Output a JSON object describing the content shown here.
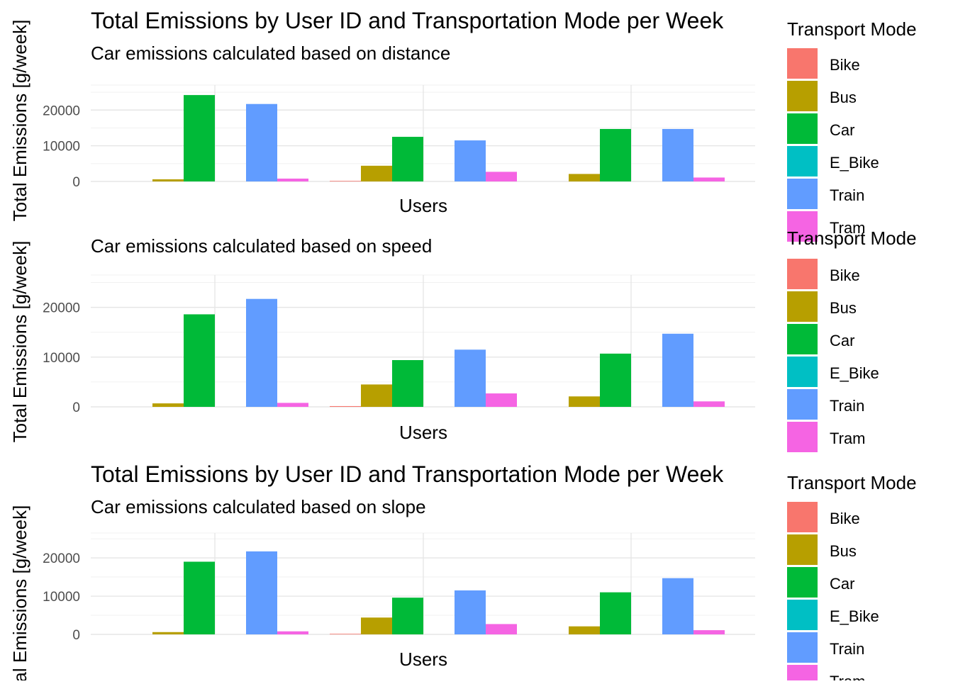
{
  "legend": {
    "title": "Transport Mode",
    "items": [
      {
        "label": "Bike",
        "color": "#F8766D"
      },
      {
        "label": "Bus",
        "color": "#B79F00"
      },
      {
        "label": "Car",
        "color": "#00BA38"
      },
      {
        "label": "E_Bike",
        "color": "#00BFC4"
      },
      {
        "label": "Train",
        "color": "#619CFF"
      },
      {
        "label": "Tram",
        "color": "#F564E3"
      }
    ]
  },
  "chart_data": [
    {
      "type": "bar",
      "title": "Total Emissions by User ID and Transportation Mode per Week",
      "subtitle": "Car emissions calculated based on distance",
      "xlabel": "Users",
      "ylabel": "Total Emissions [g/week]",
      "ylim": [
        0,
        27000
      ],
      "yticks": [
        0,
        10000,
        20000
      ],
      "ytick_labels": [
        "0",
        "10000",
        "20000"
      ],
      "grid": true,
      "legend_position": "right",
      "groups": [
        {
          "bars": [
            {
              "mode": "Bus",
              "value": 600
            },
            {
              "mode": "Car",
              "value": 24200
            },
            {
              "mode": "Train",
              "value": 21700
            },
            {
              "mode": "Tram",
              "value": 800
            }
          ]
        },
        {
          "bars": [
            {
              "mode": "Bike",
              "value": 150
            },
            {
              "mode": "Bus",
              "value": 4400
            },
            {
              "mode": "Car",
              "value": 12500
            },
            {
              "mode": "Train",
              "value": 11500
            },
            {
              "mode": "Tram",
              "value": 2700
            }
          ]
        },
        {
          "bars": [
            {
              "mode": "Bus",
              "value": 2100
            },
            {
              "mode": "Car",
              "value": 14700
            },
            {
              "mode": "Train",
              "value": 14700
            },
            {
              "mode": "Tram",
              "value": 1100
            }
          ]
        }
      ]
    },
    {
      "type": "bar",
      "title": "",
      "subtitle": "Car emissions calculated based on speed",
      "xlabel": "Users",
      "ylabel": "Total Emissions [g/week]",
      "ylim": [
        0,
        26500
      ],
      "yticks": [
        0,
        10000,
        20000
      ],
      "ytick_labels": [
        "0",
        "10000",
        "20000"
      ],
      "grid": true,
      "legend_position": "right",
      "groups": [
        {
          "bars": [
            {
              "mode": "Bus",
              "value": 700
            },
            {
              "mode": "Car",
              "value": 18600
            },
            {
              "mode": "Train",
              "value": 21700
            },
            {
              "mode": "Tram",
              "value": 800
            }
          ]
        },
        {
          "bars": [
            {
              "mode": "Bike",
              "value": 150
            },
            {
              "mode": "Bus",
              "value": 4500
            },
            {
              "mode": "Car",
              "value": 9400
            },
            {
              "mode": "Train",
              "value": 11500
            },
            {
              "mode": "Tram",
              "value": 2700
            }
          ]
        },
        {
          "bars": [
            {
              "mode": "Bus",
              "value": 2100
            },
            {
              "mode": "Car",
              "value": 10700
            },
            {
              "mode": "Train",
              "value": 14700
            },
            {
              "mode": "Tram",
              "value": 1100
            }
          ]
        }
      ]
    },
    {
      "type": "bar",
      "title": "Total Emissions by User ID and Transportation Mode per Week",
      "subtitle": "Car emissions calculated based on slope",
      "xlabel": "Users",
      "ylabel": "Total Emissions [g/week]",
      "ylim": [
        0,
        26500
      ],
      "yticks": [
        0,
        10000,
        20000
      ],
      "ytick_labels": [
        "0",
        "10000",
        "20000"
      ],
      "grid": true,
      "legend_position": "right",
      "groups": [
        {
          "bars": [
            {
              "mode": "Bus",
              "value": 600
            },
            {
              "mode": "Car",
              "value": 19000
            },
            {
              "mode": "Train",
              "value": 21700
            },
            {
              "mode": "Tram",
              "value": 800
            }
          ]
        },
        {
          "bars": [
            {
              "mode": "Bike",
              "value": 150
            },
            {
              "mode": "Bus",
              "value": 4400
            },
            {
              "mode": "Car",
              "value": 9600
            },
            {
              "mode": "Train",
              "value": 11500
            },
            {
              "mode": "Tram",
              "value": 2700
            }
          ]
        },
        {
          "bars": [
            {
              "mode": "Bus",
              "value": 2100
            },
            {
              "mode": "Car",
              "value": 11000
            },
            {
              "mode": "Train",
              "value": 14700
            },
            {
              "mode": "Tram",
              "value": 1100
            }
          ]
        }
      ]
    }
  ]
}
